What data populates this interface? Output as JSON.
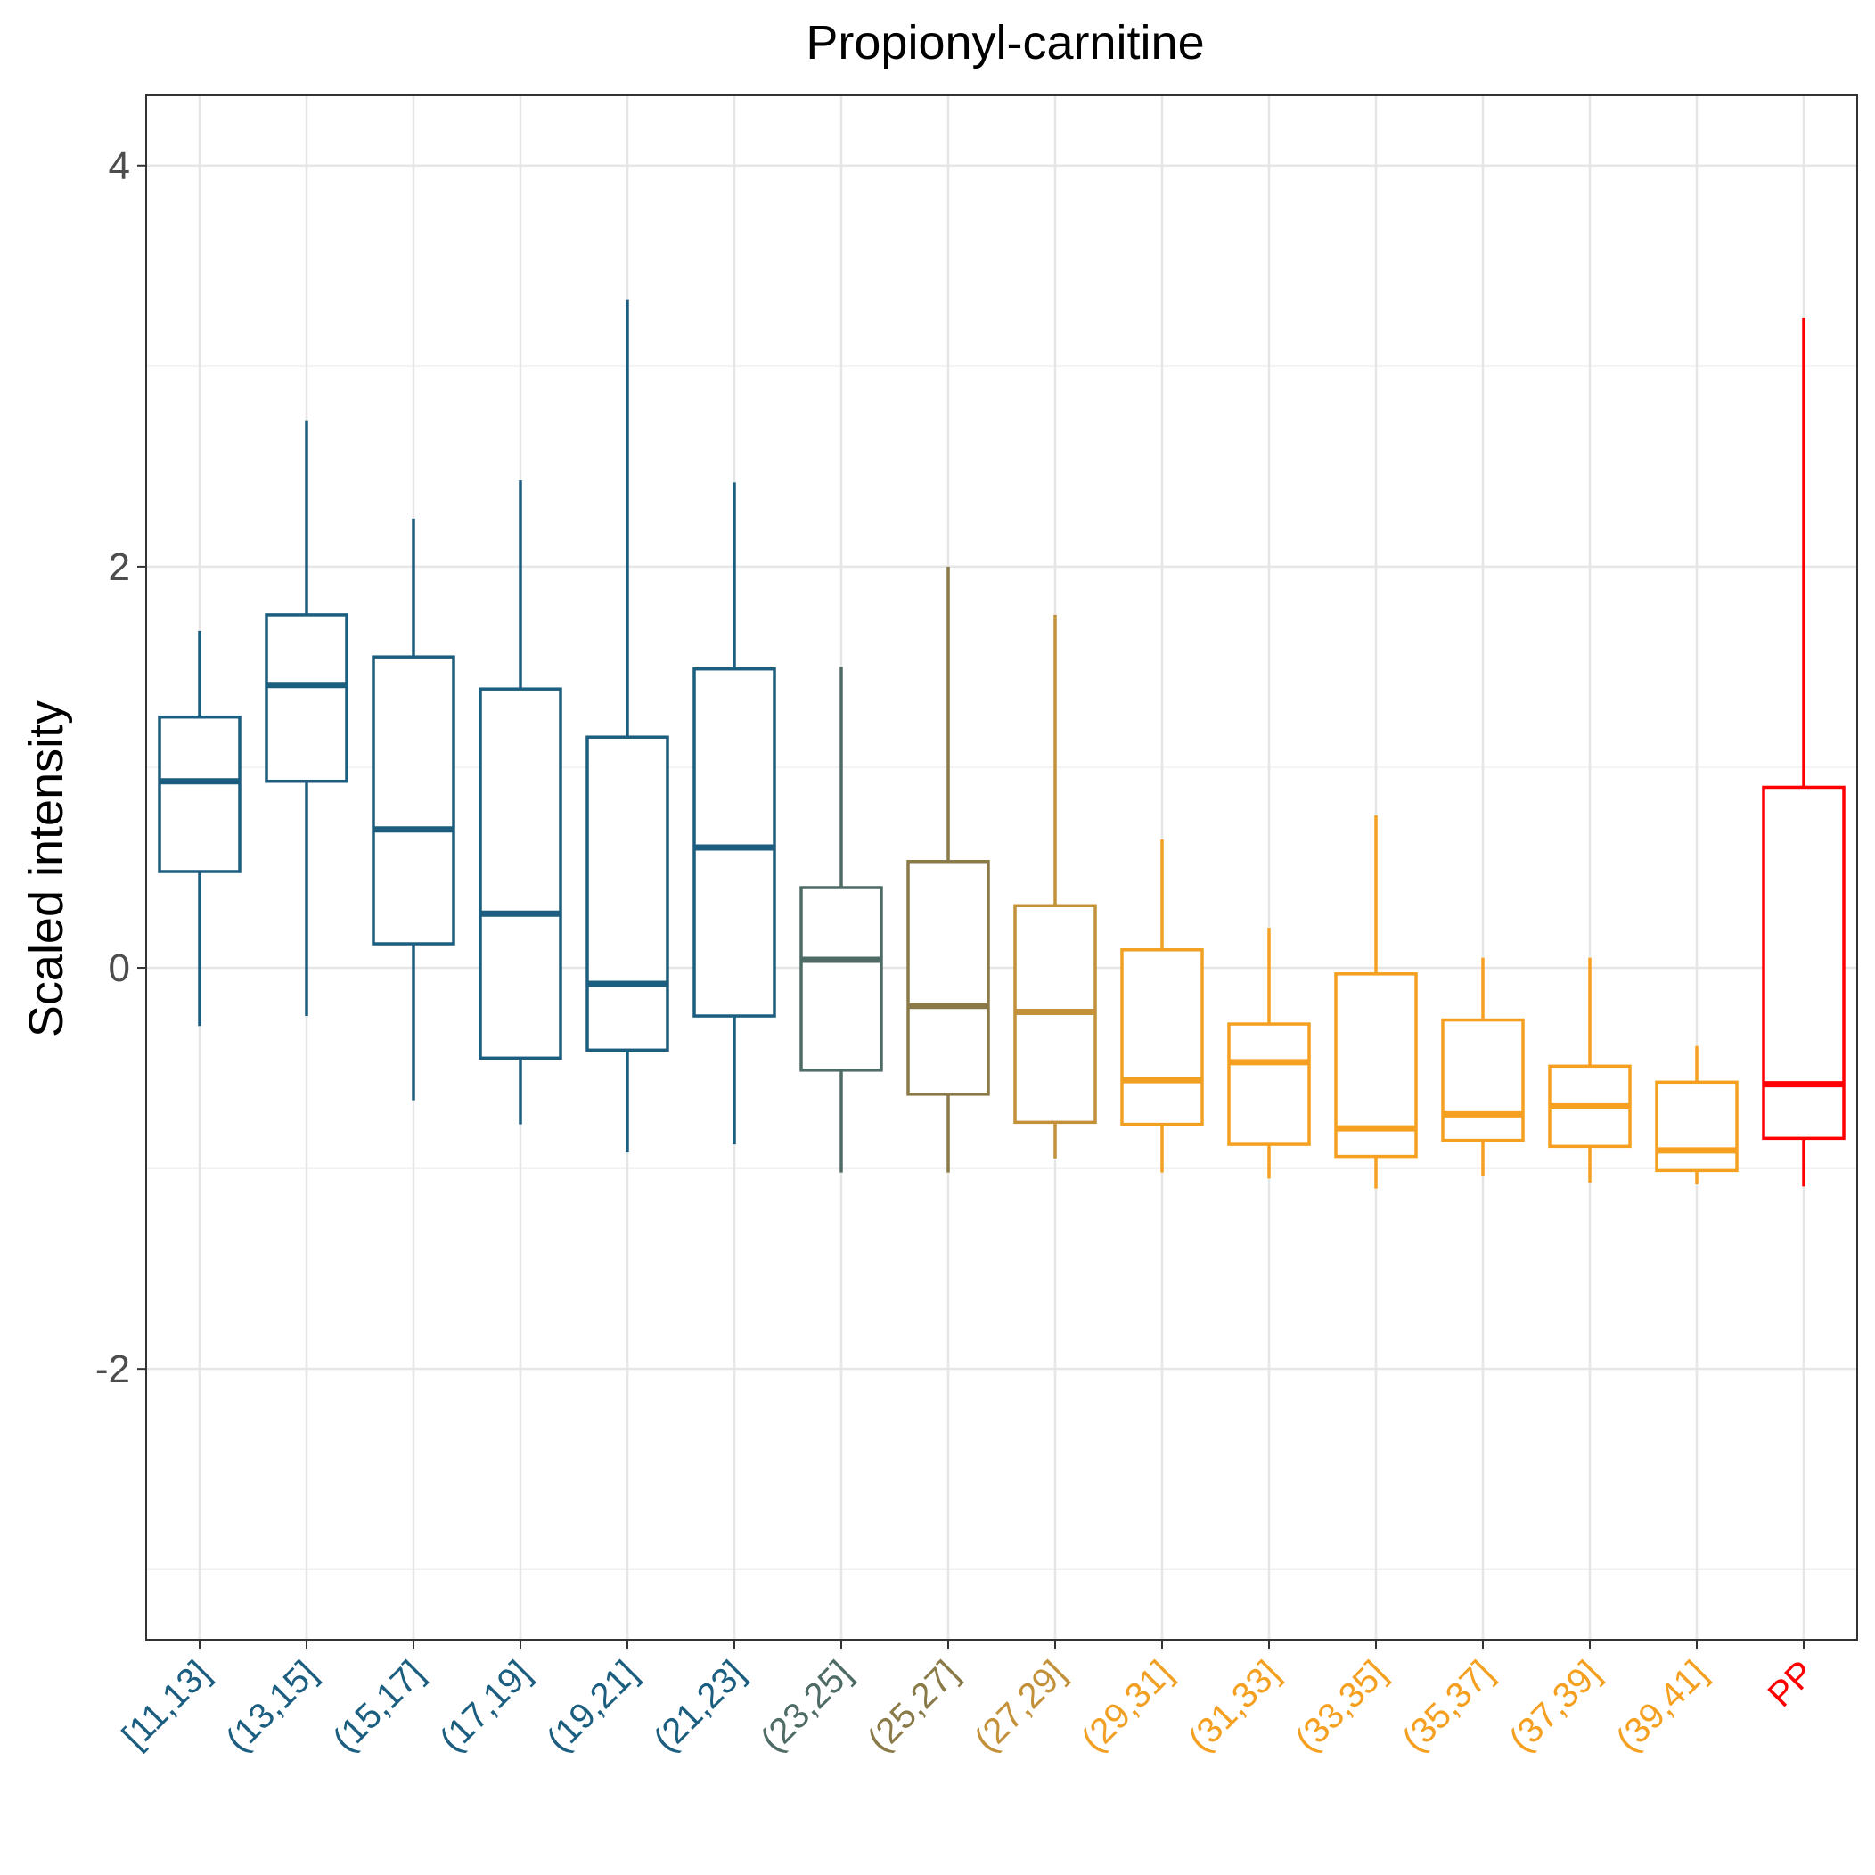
{
  "chart_data": {
    "type": "boxplot",
    "title": "Propionyl-carnitine",
    "xlabel": "",
    "ylabel": "Scaled intensity",
    "ylim": [
      -3.35,
      4.35
    ],
    "yticks": [
      4,
      2,
      0,
      -2
    ],
    "ytick_labels": [
      "4",
      "2",
      "0",
      "-2"
    ],
    "grid": true,
    "legend": "none",
    "categories": [
      "[11,13]",
      "(13,15]",
      "(15,17]",
      "(17,19]",
      "(19,21]",
      "(21,23]",
      "(23,25]",
      "(25,27]",
      "(27,29]",
      "(29,31]",
      "(31,33]",
      "(33,35]",
      "(35,37]",
      "(37,39]",
      "(39,41]",
      "PP"
    ],
    "colors": [
      "#1b5e80",
      "#1b5e80",
      "#1b5e80",
      "#1b5e80",
      "#1b5e80",
      "#1b5e80",
      "#4f6b66",
      "#8a7a48",
      "#c2913a",
      "#f2a024",
      "#f5a020",
      "#f5a020",
      "#f5a020",
      "#f5a020",
      "#f5a020",
      "#ff0000"
    ],
    "boxes": [
      {
        "min": -0.29,
        "q1": 0.48,
        "median": 0.93,
        "q3": 1.25,
        "max": 1.68
      },
      {
        "min": -0.24,
        "q1": 0.93,
        "median": 1.41,
        "q3": 1.76,
        "max": 2.73
      },
      {
        "min": -0.66,
        "q1": 0.12,
        "median": 0.69,
        "q3": 1.55,
        "max": 2.24
      },
      {
        "min": -0.78,
        "q1": -0.45,
        "median": 0.27,
        "q3": 1.39,
        "max": 2.43
      },
      {
        "min": -0.92,
        "q1": -0.41,
        "median": -0.08,
        "q3": 1.15,
        "max": 3.33
      },
      {
        "min": -0.88,
        "q1": -0.24,
        "median": 0.6,
        "q3": 1.49,
        "max": 2.42
      },
      {
        "min": -1.02,
        "q1": -0.51,
        "median": 0.04,
        "q3": 0.4,
        "max": 1.5
      },
      {
        "min": -1.02,
        "q1": -0.63,
        "median": -0.19,
        "q3": 0.53,
        "max": 2.0
      },
      {
        "min": -0.95,
        "q1": -0.77,
        "median": -0.22,
        "q3": 0.31,
        "max": 1.76
      },
      {
        "min": -1.02,
        "q1": -0.78,
        "median": -0.56,
        "q3": 0.09,
        "max": 0.64
      },
      {
        "min": -1.05,
        "q1": -0.88,
        "median": -0.47,
        "q3": -0.28,
        "max": 0.2
      },
      {
        "min": -1.1,
        "q1": -0.94,
        "median": -0.8,
        "q3": -0.03,
        "max": 0.76
      },
      {
        "min": -1.04,
        "q1": -0.86,
        "median": -0.73,
        "q3": -0.26,
        "max": 0.05
      },
      {
        "min": -1.07,
        "q1": -0.89,
        "median": -0.69,
        "q3": -0.49,
        "max": 0.05
      },
      {
        "min": -1.08,
        "q1": -1.01,
        "median": -0.91,
        "q3": -0.57,
        "max": -0.39
      },
      {
        "min": -1.09,
        "q1": -0.85,
        "median": -0.58,
        "q3": 0.9,
        "max": 3.24
      }
    ]
  }
}
